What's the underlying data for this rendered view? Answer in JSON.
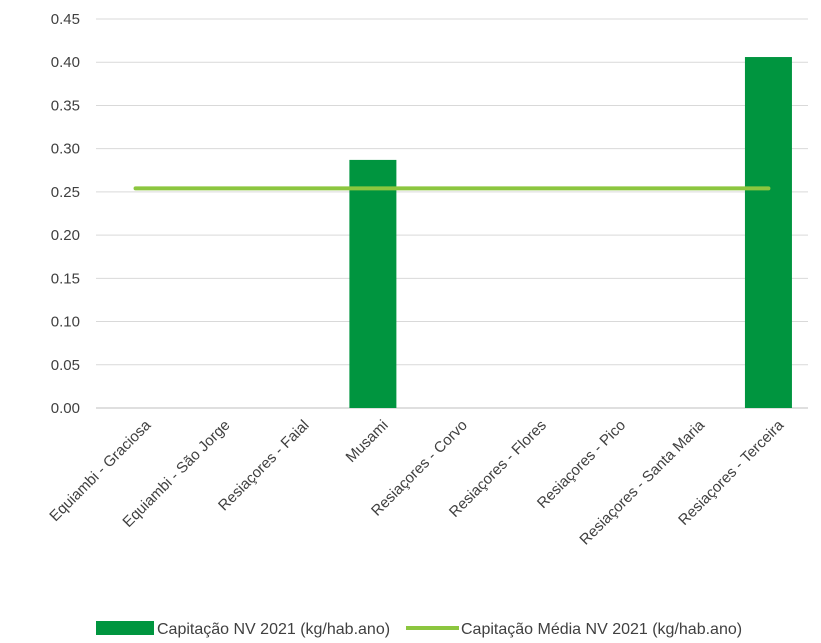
{
  "chart_data": {
    "type": "bar",
    "categories": [
      "Equiambi - Graciosa",
      "Equiambi - São Jorge",
      "Resiaçores - Faial",
      "Musami",
      "Resiaçores - Corvo",
      "Resiaçores - Flores",
      "Resiaçores - Pico",
      "Resiaçores - Santa Maria",
      "Resiaçores - Terceira"
    ],
    "series": [
      {
        "name": "Capitação NV 2021 (kg/hab.ano)",
        "type": "bar",
        "color": "#00953f",
        "values": [
          0,
          0,
          0,
          0.287,
          0,
          0,
          0,
          0,
          0.406
        ]
      },
      {
        "name": "Capitação Média NV 2021 (kg/hab.ano)",
        "type": "line",
        "color": "#8cc63f",
        "values": [
          0.254,
          0.254,
          0.254,
          0.254,
          0.254,
          0.254,
          0.254,
          0.254,
          0.254
        ]
      }
    ],
    "ylim": [
      0,
      0.45
    ],
    "yticks": [
      "0.00",
      "0.05",
      "0.10",
      "0.15",
      "0.20",
      "0.25",
      "0.30",
      "0.35",
      "0.40",
      "0.45"
    ],
    "grid": true,
    "legend_position": "bottom",
    "title": "",
    "xlabel": "",
    "ylabel": ""
  }
}
